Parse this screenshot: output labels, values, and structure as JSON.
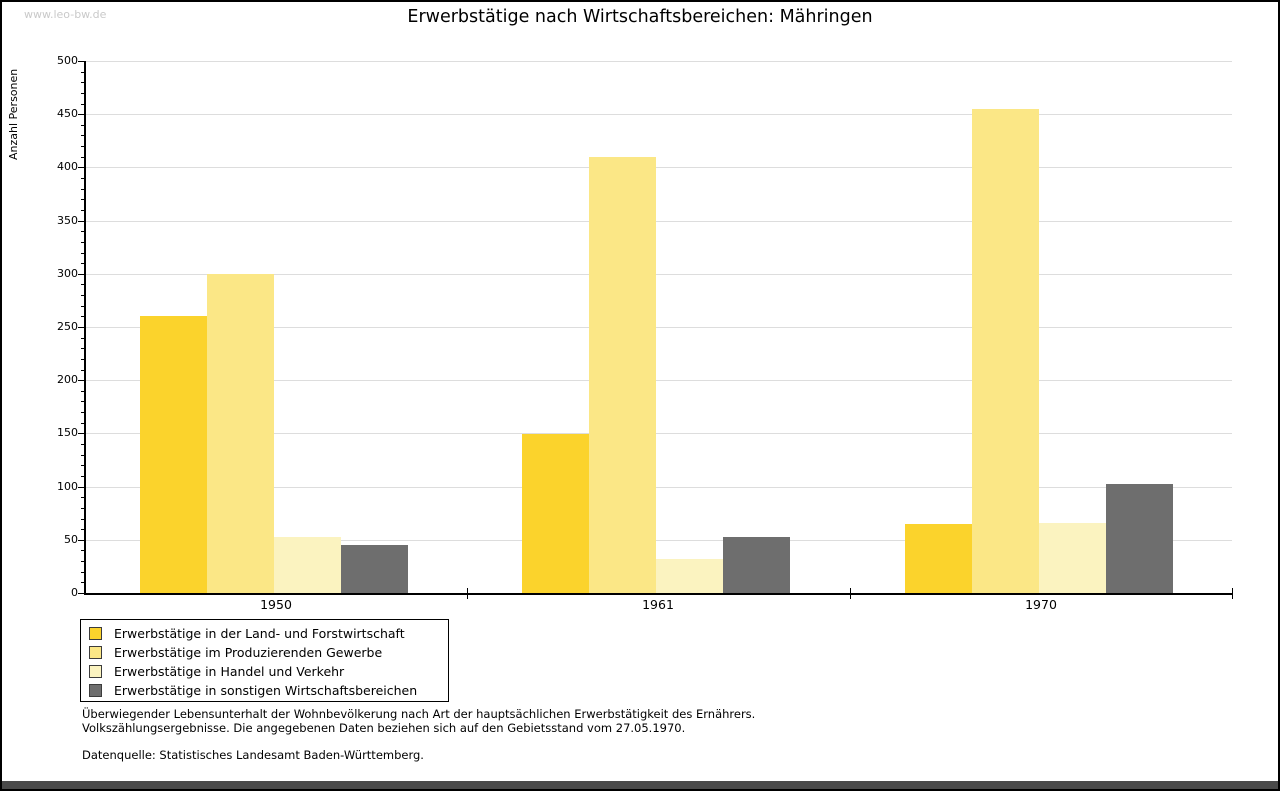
{
  "watermark": "www.leo-bw.de",
  "chart_data": {
    "type": "bar",
    "title": "Erwerbstätige nach Wirtschaftsbereichen: Mähringen",
    "ylabel": "Anzahl Personen",
    "xlabel": "",
    "ylim": [
      0,
      500
    ],
    "ytick_step": 50,
    "yminor_step": 10,
    "yticks": [
      0,
      50,
      100,
      150,
      200,
      250,
      300,
      350,
      400,
      450,
      500
    ],
    "grid": true,
    "legend_position": "bottom-left",
    "categories": [
      "1950",
      "1961",
      "1970"
    ],
    "series": [
      {
        "name": "Erwerbstätige in der Land- und Forstwirtschaft",
        "color": "#fbd32c",
        "values": [
          260,
          149,
          65
        ]
      },
      {
        "name": "Erwerbstätige im Produzierenden Gewerbe",
        "color": "#fbe786",
        "values": [
          300,
          410,
          455
        ]
      },
      {
        "name": "Erwerbstätige in Handel und Verkehr",
        "color": "#fbf3c0",
        "values": [
          53,
          32,
          66
        ]
      },
      {
        "name": "Erwerbstätige in sonstigen Wirtschaftsbereichen",
        "color": "#6e6e6e",
        "values": [
          45,
          53,
          102
        ]
      }
    ]
  },
  "footnotes": {
    "line1": "Überwiegender Lebensunterhalt der Wohnbevölkerung nach Art der hauptsächlichen Erwerbstätigkeit des Ernährers.",
    "line2": "Volkszählungsergebnisse. Die angegebenen Daten beziehen sich auf den Gebietsstand vom 27.05.1970.",
    "source": "Datenquelle: Statistisches Landesamt Baden-Württemberg."
  },
  "colors": {
    "axis": "#000000",
    "grid": "#dddddd",
    "watermark": "#c9c9c9",
    "bottom_bar": "#4a4a4a"
  }
}
